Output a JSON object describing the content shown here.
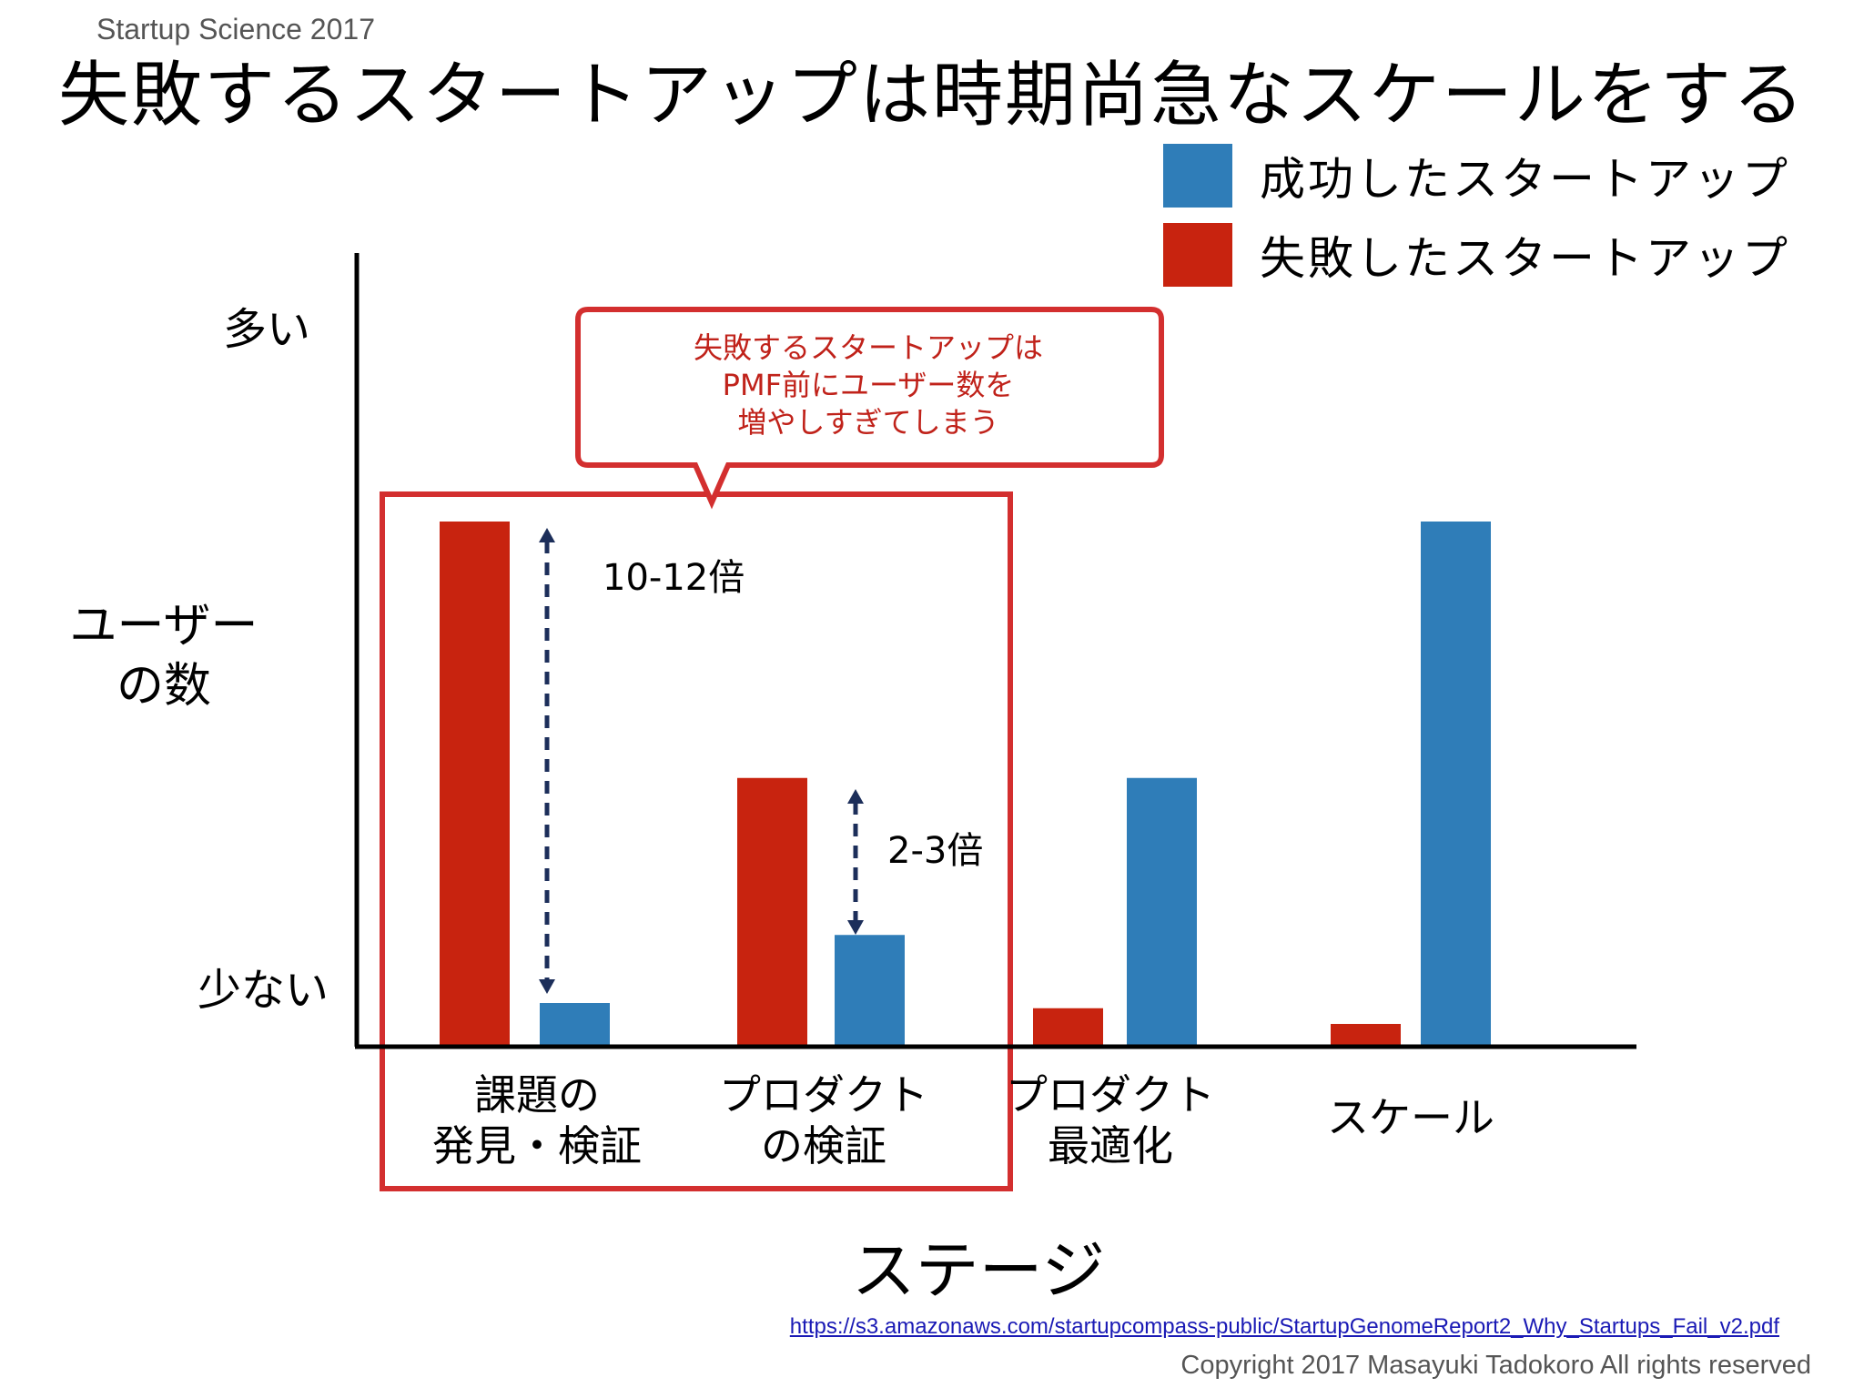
{
  "header": {
    "series_label": "Startup Science 2017",
    "title": "失敗するスタートアップは時期尚急なスケールをする"
  },
  "colors": {
    "success": "#2f7db8",
    "failure": "#c8230f",
    "highlight": "#d32f2f",
    "arrow": "#1c2e5a"
  },
  "legend": [
    {
      "label": "成功したスタートアップ",
      "color": "#2f7db8"
    },
    {
      "label": "失敗したスタートアップ",
      "color": "#c8230f"
    }
  ],
  "chart_data": {
    "type": "bar",
    "categories": [
      "課題の\n発見・検証",
      "プロダクト\nの検証",
      "プロダクト\n最適化",
      "スケール"
    ],
    "series": [
      {
        "name": "失敗したスタートアップ",
        "values": [
          100,
          51,
          7,
          4
        ]
      },
      {
        "name": "成功したスタートアップ",
        "values": [
          8,
          21,
          51,
          100
        ]
      }
    ],
    "ylim": [
      0,
      100
    ],
    "ytick_labels": {
      "high": "多い",
      "low": "少ない"
    },
    "ylabel": "ユーザー\nの数",
    "xlabel": "ステージ",
    "legend_position": "top-right",
    "grid": false,
    "annotations": [
      {
        "text": "10-12倍",
        "category": 0
      },
      {
        "text": "2-3倍",
        "category": 1
      }
    ],
    "callout": "失敗するスタートアップは\nPMF前にユーザー数を\n増やしすぎてしまう",
    "highlighted_categories": [
      0,
      1
    ]
  },
  "footer": {
    "source_url": "https://s3.amazonaws.com/startupcompass-public/StartupGenomeReport2_Why_Startups_Fail_v2.pdf",
    "copyright": "Copyright 2017 Masayuki Tadokoro All rights reserved"
  }
}
